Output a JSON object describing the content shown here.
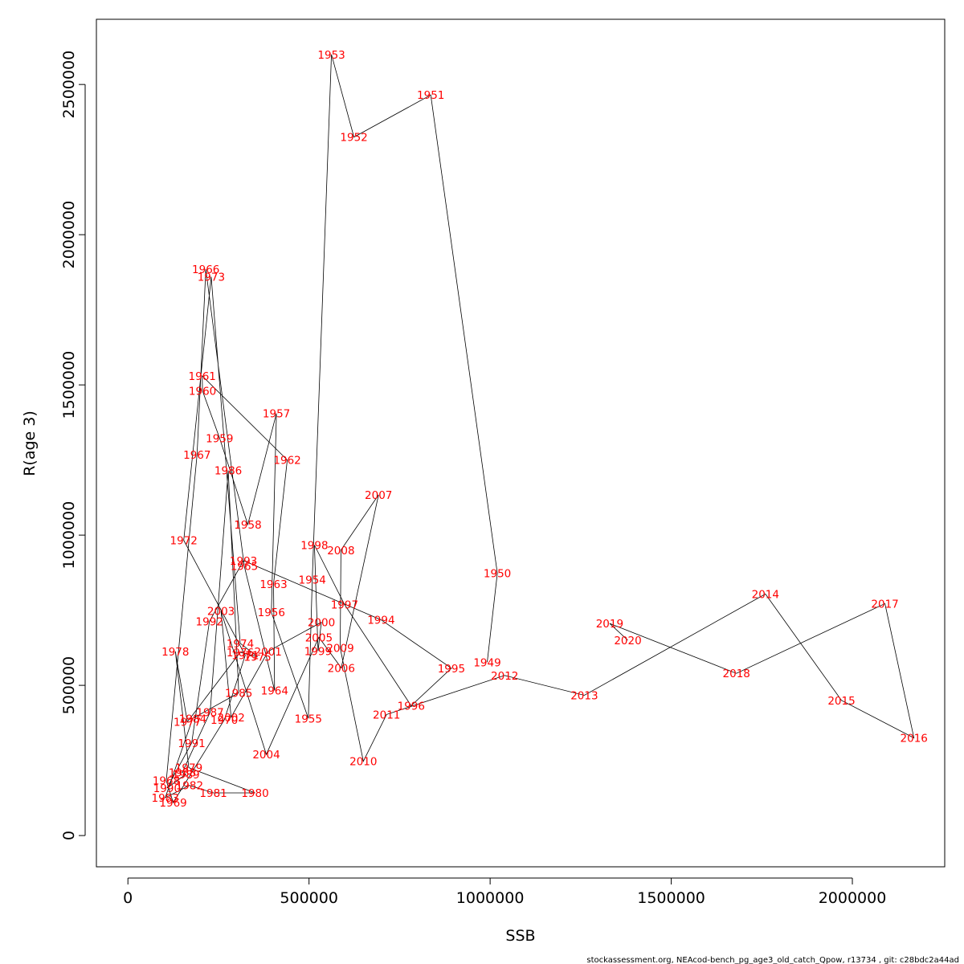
{
  "chart_data": {
    "type": "line",
    "title": "",
    "xlabel": "SSB",
    "ylabel": "R(age 3)",
    "xlim": [
      -87000,
      2255000
    ],
    "ylim": [
      -104000,
      2717000
    ],
    "x_ticks": [
      0,
      500000,
      1000000,
      1500000,
      2000000
    ],
    "x_tick_labels": [
      "0",
      "500000",
      "1000000",
      "1500000",
      "2000000"
    ],
    "y_ticks": [
      0,
      500000,
      1000000,
      1500000,
      2000000,
      2500000
    ],
    "y_tick_labels": [
      "0",
      "500000",
      "1000000",
      "1500000",
      "2000000",
      "2500000"
    ],
    "grid": false,
    "line_color": "#000000",
    "label_color": "#ff0000",
    "points": [
      {
        "year": "1949",
        "ssb": 992000,
        "r": 577000
      },
      {
        "year": "1950",
        "ssb": 1020000,
        "r": 873000
      },
      {
        "year": "1951",
        "ssb": 836000,
        "r": 2465000
      },
      {
        "year": "1952",
        "ssb": 624000,
        "r": 2325000
      },
      {
        "year": "1953",
        "ssb": 562000,
        "r": 2600000
      },
      {
        "year": "1954",
        "ssb": 509000,
        "r": 852000
      },
      {
        "year": "1955",
        "ssb": 498000,
        "r": 390000
      },
      {
        "year": "1956",
        "ssb": 396000,
        "r": 743000
      },
      {
        "year": "1957",
        "ssb": 410000,
        "r": 1405000
      },
      {
        "year": "1958",
        "ssb": 331000,
        "r": 1035000
      },
      {
        "year": "1959",
        "ssb": 253000,
        "r": 1323000
      },
      {
        "year": "1960",
        "ssb": 206000,
        "r": 1480000
      },
      {
        "year": "1961",
        "ssb": 205000,
        "r": 1530000
      },
      {
        "year": "1962",
        "ssb": 440000,
        "r": 1250000
      },
      {
        "year": "1963",
        "ssb": 402000,
        "r": 837000
      },
      {
        "year": "1964",
        "ssb": 405000,
        "r": 483000
      },
      {
        "year": "1965",
        "ssb": 321000,
        "r": 898000
      },
      {
        "year": "1966",
        "ssb": 215000,
        "r": 1885000
      },
      {
        "year": "1967",
        "ssb": 191000,
        "r": 1268000
      },
      {
        "year": "1968",
        "ssb": 106000,
        "r": 183000
      },
      {
        "year": "1969",
        "ssb": 125000,
        "r": 110000
      },
      {
        "year": "1970",
        "ssb": 266000,
        "r": 385000
      },
      {
        "year": "1971",
        "ssb": 324000,
        "r": 600000
      },
      {
        "year": "1972",
        "ssb": 154000,
        "r": 983000
      },
      {
        "year": "1973",
        "ssb": 230000,
        "r": 1860000
      },
      {
        "year": "1974",
        "ssb": 310000,
        "r": 640000
      },
      {
        "year": "1975",
        "ssb": 358000,
        "r": 595000
      },
      {
        "year": "1976",
        "ssb": 310000,
        "r": 610000
      },
      {
        "year": "1977",
        "ssb": 164000,
        "r": 378000
      },
      {
        "year": "1978",
        "ssb": 131000,
        "r": 613000
      },
      {
        "year": "1979",
        "ssb": 168000,
        "r": 226000
      },
      {
        "year": "1980",
        "ssb": 351000,
        "r": 142000
      },
      {
        "year": "1981",
        "ssb": 236000,
        "r": 142000
      },
      {
        "year": "1982",
        "ssb": 170000,
        "r": 167000
      },
      {
        "year": "1983",
        "ssb": 103000,
        "r": 126000
      },
      {
        "year": "1984",
        "ssb": 179000,
        "r": 390000
      },
      {
        "year": "1985",
        "ssb": 306000,
        "r": 475000
      },
      {
        "year": "1986",
        "ssb": 277000,
        "r": 1215000
      },
      {
        "year": "1987",
        "ssb": 227000,
        "r": 411000
      },
      {
        "year": "1988",
        "ssb": 150000,
        "r": 210000
      },
      {
        "year": "1989",
        "ssb": 160000,
        "r": 204000
      },
      {
        "year": "1990",
        "ssb": 108000,
        "r": 158000
      },
      {
        "year": "1991",
        "ssb": 176000,
        "r": 308000
      },
      {
        "year": "1992",
        "ssb": 225000,
        "r": 713000
      },
      {
        "year": "1993",
        "ssb": 319000,
        "r": 915000
      },
      {
        "year": "1994",
        "ssb": 699000,
        "r": 718000
      },
      {
        "year": "1995",
        "ssb": 893000,
        "r": 557000
      },
      {
        "year": "1996",
        "ssb": 782000,
        "r": 432000
      },
      {
        "year": "1997",
        "ssb": 598000,
        "r": 769000
      },
      {
        "year": "1998",
        "ssb": 515000,
        "r": 967000
      },
      {
        "year": "1999",
        "ssb": 525000,
        "r": 614000
      },
      {
        "year": "2000",
        "ssb": 534000,
        "r": 710000
      },
      {
        "year": "2001",
        "ssb": 387000,
        "r": 613000
      },
      {
        "year": "2002",
        "ssb": 285000,
        "r": 394000
      },
      {
        "year": "2003",
        "ssb": 257000,
        "r": 747000
      },
      {
        "year": "2004",
        "ssb": 382000,
        "r": 270000
      },
      {
        "year": "2005",
        "ssb": 527000,
        "r": 660000
      },
      {
        "year": "2006",
        "ssb": 589000,
        "r": 558000
      },
      {
        "year": "2007",
        "ssb": 692000,
        "r": 1134000
      },
      {
        "year": "2008",
        "ssb": 588000,
        "r": 950000
      },
      {
        "year": "2009",
        "ssb": 586000,
        "r": 624000
      },
      {
        "year": "2010",
        "ssb": 650000,
        "r": 247000
      },
      {
        "year": "2011",
        "ssb": 714000,
        "r": 403000
      },
      {
        "year": "2012",
        "ssb": 1040000,
        "r": 533000
      },
      {
        "year": "2013",
        "ssb": 1260000,
        "r": 467000
      },
      {
        "year": "2014",
        "ssb": 1760000,
        "r": 804000
      },
      {
        "year": "2015",
        "ssb": 1970000,
        "r": 450000
      },
      {
        "year": "2016",
        "ssb": 2170000,
        "r": 325000
      },
      {
        "year": "2017",
        "ssb": 2090000,
        "r": 772000
      },
      {
        "year": "2018",
        "ssb": 1680000,
        "r": 540000
      },
      {
        "year": "2019",
        "ssb": 1330000,
        "r": 706000
      },
      {
        "year": "2020",
        "ssb": 1380000,
        "r": 650000
      }
    ]
  },
  "footer": "stockassessment.org, NEAcod-bench_pg_age3_old_catch_Qpow, r13734 , git: c28bdc2a44ad"
}
